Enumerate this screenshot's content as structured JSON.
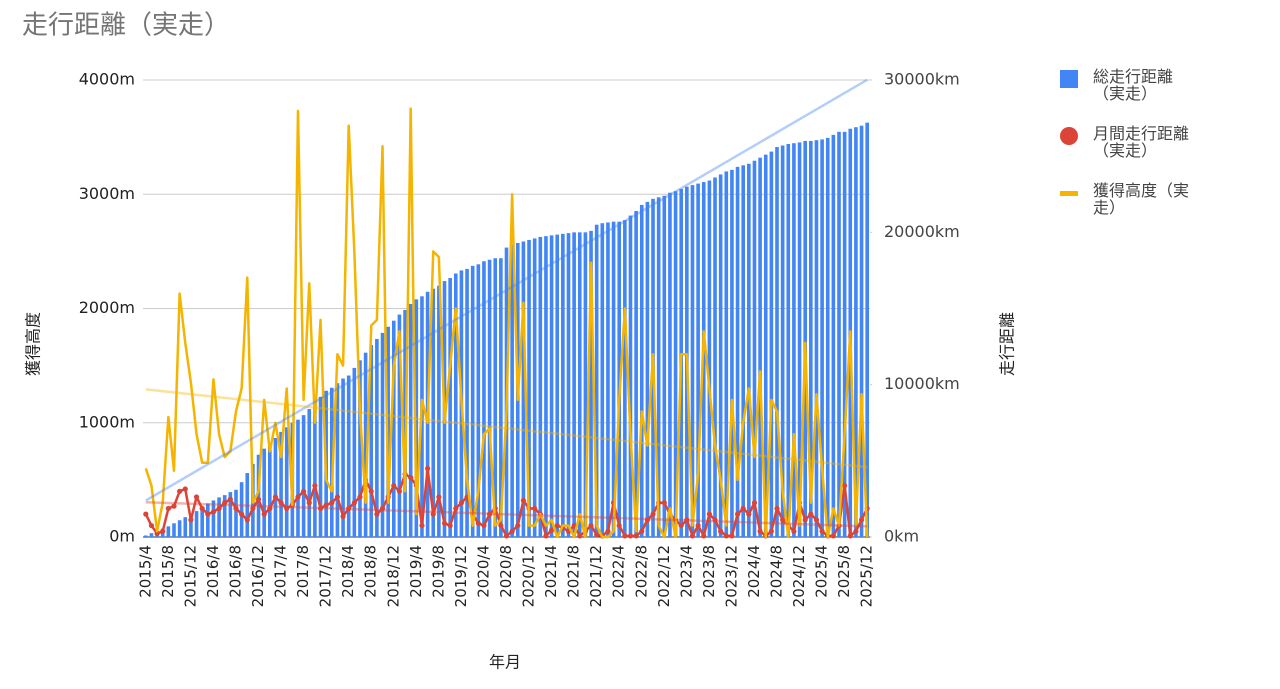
{
  "chart_data": {
    "type": "combo",
    "title": "走行距離（実走）",
    "x_label": "年月",
    "y_label": "獲得高度",
    "y2_label": "走行距離",
    "categories": [
      "2015/4",
      null,
      null,
      null,
      "2015/8",
      null,
      null,
      null,
      "2015/12",
      null,
      null,
      null,
      "2016/4",
      null,
      null,
      null,
      "2016/8",
      null,
      null,
      null,
      "2016/12",
      null,
      null,
      null,
      "2017/4",
      null,
      null,
      null,
      "2017/8",
      null,
      null,
      null,
      "2017/12",
      null,
      null,
      null,
      "2018/4",
      null,
      null,
      null,
      "2018/8",
      null,
      null,
      null,
      "2018/12",
      null,
      null,
      null,
      "2019/4",
      null,
      null,
      null,
      "2019/8",
      null,
      null,
      null,
      "2019/12",
      null,
      null,
      null,
      "2020/4",
      null,
      null,
      null,
      "2020/8",
      null,
      null,
      null,
      "2020/12",
      null,
      null,
      null,
      "2021/4",
      null,
      null,
      null,
      "2021/8",
      null,
      null,
      null,
      "2021/12",
      null,
      null,
      null,
      "2022/4",
      null,
      null,
      null,
      "2022/8",
      null,
      null,
      null,
      "2022/12",
      null,
      null,
      null,
      "2023/4",
      null,
      null,
      null,
      "2023/8",
      null,
      null,
      null,
      "2023/12",
      null,
      null,
      null,
      "2024/4",
      null,
      null,
      null,
      "2024/8",
      null,
      null,
      null,
      "2024/12",
      null,
      null,
      null,
      "2025/4",
      null,
      null,
      null,
      "2025/8",
      null,
      null,
      null,
      "2025/12"
    ],
    "series": [
      {
        "name": "総走行距離（実走）",
        "kind": "bar",
        "axis": "y2",
        "color": "#4285f4",
        "trendline": true,
        "values": [
          100,
          250,
          400,
          550,
          700,
          900,
          1100,
          1300,
          1500,
          1700,
          1950,
          2200,
          2400,
          2600,
          2750,
          2950,
          3100,
          3600,
          4200,
          4800,
          5400,
          5800,
          6100,
          6500,
          6900,
          7200,
          7500,
          7700,
          8000,
          8400,
          8800,
          9200,
          9600,
          9800,
          10100,
          10400,
          10600,
          11100,
          11600,
          12100,
          12600,
          13000,
          13400,
          13800,
          14200,
          14600,
          14900,
          15300,
          15600,
          15800,
          16100,
          16300,
          16500,
          16800,
          17000,
          17300,
          17500,
          17600,
          17800,
          17900,
          18100,
          18200,
          18300,
          18300,
          19000,
          19200,
          19300,
          19400,
          19500,
          19600,
          19700,
          19750,
          19800,
          19850,
          19900,
          19950,
          20000,
          20000,
          20000,
          20100,
          20500,
          20600,
          20650,
          20700,
          20700,
          20800,
          21100,
          21400,
          21800,
          22000,
          22200,
          22300,
          22400,
          22600,
          22700,
          22850,
          23000,
          23100,
          23200,
          23300,
          23400,
          23600,
          23800,
          24000,
          24100,
          24300,
          24400,
          24500,
          24700,
          24900,
          25100,
          25300,
          25600,
          25700,
          25800,
          25850,
          25900,
          26000,
          26000,
          26050,
          26100,
          26200,
          26400,
          26600,
          26600,
          26800,
          26900,
          27000,
          27200
        ]
      },
      {
        "name": "月間走行距離（実走）",
        "kind": "line-points",
        "axis": "y",
        "color": "#db4437",
        "trendline": true,
        "values": [
          200,
          100,
          30,
          50,
          250,
          270,
          400,
          420,
          150,
          350,
          250,
          200,
          220,
          250,
          300,
          330,
          250,
          200,
          150,
          250,
          330,
          200,
          250,
          350,
          300,
          250,
          280,
          350,
          400,
          300,
          450,
          250,
          280,
          300,
          350,
          180,
          250,
          300,
          350,
          500,
          400,
          200,
          250,
          350,
          450,
          400,
          550,
          520,
          450,
          100,
          600,
          200,
          350,
          120,
          100,
          250,
          300,
          350,
          200,
          120,
          100,
          200,
          250,
          100,
          10,
          50,
          100,
          320,
          250,
          250,
          200,
          10,
          60,
          100,
          80,
          50,
          100,
          10,
          50,
          100,
          20,
          10,
          50,
          300,
          100,
          10,
          10,
          10,
          50,
          150,
          200,
          300,
          300,
          200,
          150,
          100,
          150,
          10,
          100,
          10,
          200,
          150,
          50,
          10,
          10,
          200,
          250,
          200,
          300,
          50,
          10,
          50,
          250,
          150,
          100,
          50,
          300,
          150,
          200,
          150,
          50,
          10,
          10,
          100,
          450,
          10,
          50,
          150,
          250
        ]
      },
      {
        "name": "獲得高度（実走）",
        "kind": "line",
        "axis": "y",
        "color": "#f4b400",
        "trendline": true,
        "values": [
          600,
          450,
          50,
          300,
          1050,
          580,
          2130,
          1700,
          1350,
          900,
          650,
          650,
          1380,
          900,
          700,
          750,
          1100,
          1300,
          2270,
          300,
          400,
          1200,
          750,
          1000,
          700,
          1300,
          280,
          3730,
          1200,
          2220,
          1000,
          1900,
          500,
          400,
          1600,
          1500,
          3600,
          2500,
          1100,
          300,
          1850,
          1900,
          3420,
          300,
          1500,
          1800,
          400,
          3750,
          200,
          1200,
          1000,
          2500,
          2450,
          1000,
          1500,
          2000,
          1200,
          500,
          100,
          400,
          900,
          950,
          100,
          150,
          1100,
          3000,
          1200,
          2050,
          100,
          100,
          200,
          100,
          150,
          0,
          100,
          100,
          0,
          200,
          0,
          2400,
          100,
          0,
          0,
          50,
          1200,
          2000,
          900,
          50,
          1100,
          800,
          1600,
          100,
          0,
          250,
          0,
          1600,
          1600,
          100,
          550,
          1800,
          1300,
          800,
          500,
          100,
          1200,
          500,
          1000,
          1300,
          700,
          1450,
          0,
          1200,
          1100,
          400,
          0,
          900,
          100,
          1700,
          300,
          1250,
          600,
          0,
          250,
          100,
          900,
          1800,
          100,
          1250,
          0
        ]
      }
    ],
    "ylim": [
      0,
      4000
    ],
    "yticks": [
      {
        "value": 0,
        "label": "0m"
      },
      {
        "value": 1000,
        "label": "1000m"
      },
      {
        "value": 2000,
        "label": "2000m"
      },
      {
        "value": 3000,
        "label": "3000m"
      },
      {
        "value": 4000,
        "label": "4000m"
      }
    ],
    "y2lim": [
      0,
      30000
    ],
    "y2ticks": [
      {
        "value": 0,
        "label": "0km"
      },
      {
        "value": 10000,
        "label": "10000km"
      },
      {
        "value": 20000,
        "label": "20000km"
      },
      {
        "value": 30000,
        "label": "30000km"
      }
    ],
    "grid": true,
    "legend": "right"
  }
}
